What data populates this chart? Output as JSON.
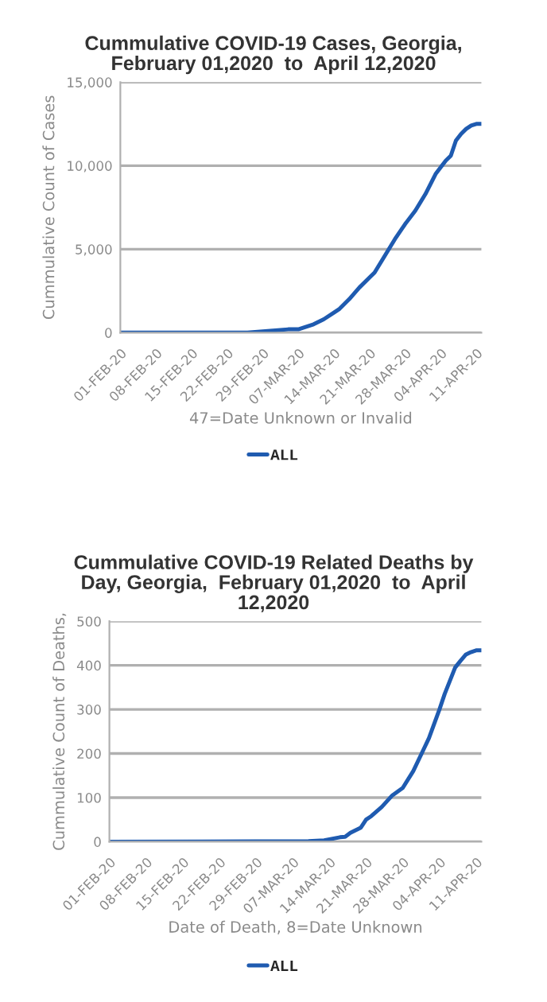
{
  "chart_data": [
    {
      "type": "line",
      "title": "Cummulative COVID-19 Cases, Georgia,\nFebruary 01,2020  to  April 12,2020",
      "ylabel": "Cummulative Count of Cases",
      "xlabel": "47=Date Unknown or Invalid",
      "x": [
        "2020-02-01",
        "2020-02-26",
        "2020-03-01",
        "2020-03-05",
        "2020-03-07",
        "2020-03-10",
        "2020-03-12",
        "2020-03-14",
        "2020-03-15",
        "2020-03-17",
        "2020-03-19",
        "2020-03-21",
        "2020-03-22",
        "2020-03-24",
        "2020-03-26",
        "2020-03-28",
        "2020-03-30",
        "2020-04-01",
        "2020-04-03",
        "2020-04-05",
        "2020-04-06",
        "2020-04-07",
        "2020-04-08",
        "2020-04-09",
        "2020-04-10",
        "2020-04-11",
        "2020-04-12"
      ],
      "series": [
        {
          "name": "ALL",
          "color": "#1f5bb0",
          "values": [
            0,
            0,
            100,
            200,
            200,
            500,
            800,
            1200,
            1400,
            2000,
            2700,
            3300,
            3600,
            4600,
            5600,
            6500,
            7300,
            8300,
            9500,
            10300,
            10600,
            11500,
            11900,
            12200,
            12400,
            12500,
            12500
          ]
        }
      ],
      "xlim": [
        "2020-02-01",
        "2020-04-12"
      ],
      "xticks": [
        {
          "value": "2020-02-01",
          "label": "01-FEB-20"
        },
        {
          "value": "2020-02-08",
          "label": "08-FEB-20"
        },
        {
          "value": "2020-02-15",
          "label": "15-FEB-20"
        },
        {
          "value": "2020-02-22",
          "label": "22-FEB-20"
        },
        {
          "value": "2020-02-29",
          "label": "29-FEB-20"
        },
        {
          "value": "2020-03-07",
          "label": "07-MAR-20"
        },
        {
          "value": "2020-03-14",
          "label": "14-MAR-20"
        },
        {
          "value": "2020-03-21",
          "label": "21-MAR-20"
        },
        {
          "value": "2020-03-28",
          "label": "28-MAR-20"
        },
        {
          "value": "2020-04-04",
          "label": "04-APR-20"
        },
        {
          "value": "2020-04-11",
          "label": "11-APR-20"
        }
      ],
      "ylim": [
        0,
        15000
      ],
      "yticks": [
        0,
        {
          "value": 5000,
          "label": "5,000"
        },
        {
          "value": 10000,
          "label": "10,000"
        },
        {
          "value": 15000,
          "label": "15,000"
        }
      ],
      "grid": "y",
      "legend": "bottom",
      "marker": "none",
      "line_style": "solid"
    },
    {
      "type": "line",
      "title": "Cummulative COVID-19 Related Deaths by\nDay, Georgia,  February 01,2020  to  April\n12,2020",
      "ylabel": "Cummulative Count of Deaths,",
      "xlabel": "Date of Death, 8=Date Unknown",
      "x": [
        "2020-02-01",
        "2020-03-10",
        "2020-03-13",
        "2020-03-16",
        "2020-03-17",
        "2020-03-18",
        "2020-03-20",
        "2020-03-21",
        "2020-03-22",
        "2020-03-24",
        "2020-03-26",
        "2020-03-28",
        "2020-03-30",
        "2020-04-01",
        "2020-04-02",
        "2020-04-04",
        "2020-04-05",
        "2020-04-07",
        "2020-04-08",
        "2020-04-09",
        "2020-04-10",
        "2020-04-11",
        "2020-04-12"
      ],
      "series": [
        {
          "name": "ALL",
          "color": "#1f5bb0",
          "values": [
            0,
            1,
            3,
            10,
            11,
            20,
            32,
            50,
            58,
            79,
            105,
            122,
            160,
            210,
            235,
            300,
            335,
            395,
            410,
            424,
            430,
            434,
            434
          ]
        }
      ],
      "xlim": [
        "2020-02-01",
        "2020-04-12"
      ],
      "xticks": [
        {
          "value": "2020-02-01",
          "label": "01-FEB-20"
        },
        {
          "value": "2020-02-08",
          "label": "08-FEB-20"
        },
        {
          "value": "2020-02-15",
          "label": "15-FEB-20"
        },
        {
          "value": "2020-02-22",
          "label": "22-FEB-20"
        },
        {
          "value": "2020-02-29",
          "label": "29-FEB-20"
        },
        {
          "value": "2020-03-07",
          "label": "07-MAR-20"
        },
        {
          "value": "2020-03-14",
          "label": "14-MAR-20"
        },
        {
          "value": "2020-03-21",
          "label": "21-MAR-20"
        },
        {
          "value": "2020-03-28",
          "label": "28-MAR-20"
        },
        {
          "value": "2020-04-04",
          "label": "04-APR-20"
        },
        {
          "value": "2020-04-11",
          "label": "11-APR-20"
        }
      ],
      "ylim": [
        0,
        500
      ],
      "yticks": [
        0,
        100,
        200,
        300,
        400,
        500
      ],
      "grid": "y",
      "legend": "bottom",
      "marker": "none",
      "line_style": "solid"
    }
  ]
}
